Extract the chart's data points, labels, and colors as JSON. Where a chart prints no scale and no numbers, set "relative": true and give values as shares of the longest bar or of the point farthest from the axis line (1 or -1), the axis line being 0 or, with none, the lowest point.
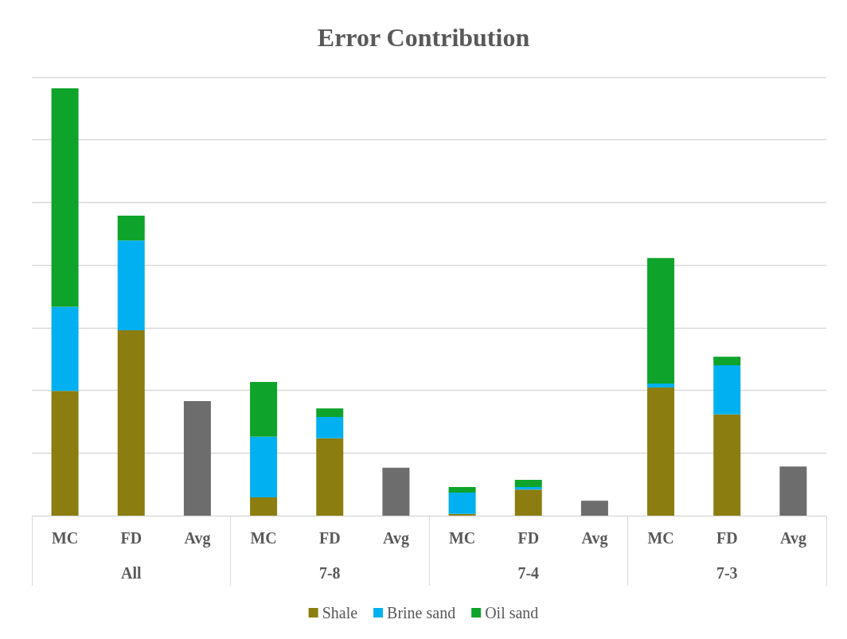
{
  "chart_data": {
    "type": "bar",
    "title": "Error Contribution",
    "relative": true,
    "stacked": true,
    "grid": "y",
    "legend": "bottom",
    "categories": [
      "MC",
      "FD",
      "Avg",
      "MC",
      "FD",
      "Avg",
      "MC",
      "FD",
      "Avg",
      "MC",
      "FD",
      "Avg"
    ],
    "annotations": [
      "All",
      "7-8",
      "7-4",
      "7-3"
    ],
    "series": [
      {
        "name": "Shale",
        "color": "#8b7d0f",
        "values": [
          0.292,
          0.434,
          null,
          0.043,
          0.181,
          null,
          0.004,
          0.061,
          null,
          0.3,
          0.237,
          null
        ]
      },
      {
        "name": "Brine sand",
        "color": "#00b0f0",
        "values": [
          0.197,
          0.21,
          null,
          0.142,
          0.05,
          null,
          0.05,
          0.006,
          null,
          0.009,
          0.115,
          null
        ]
      },
      {
        "name": "Oil sand",
        "color": "#0ea32a",
        "values": [
          0.511,
          0.058,
          null,
          0.128,
          0.02,
          null,
          0.013,
          0.017,
          null,
          0.294,
          0.02,
          null
        ]
      },
      {
        "color": "#6d6d6d",
        "values": [
          null,
          null,
          0.268,
          null,
          null,
          0.112,
          null,
          null,
          0.035,
          null,
          null,
          0.115
        ]
      }
    ]
  }
}
